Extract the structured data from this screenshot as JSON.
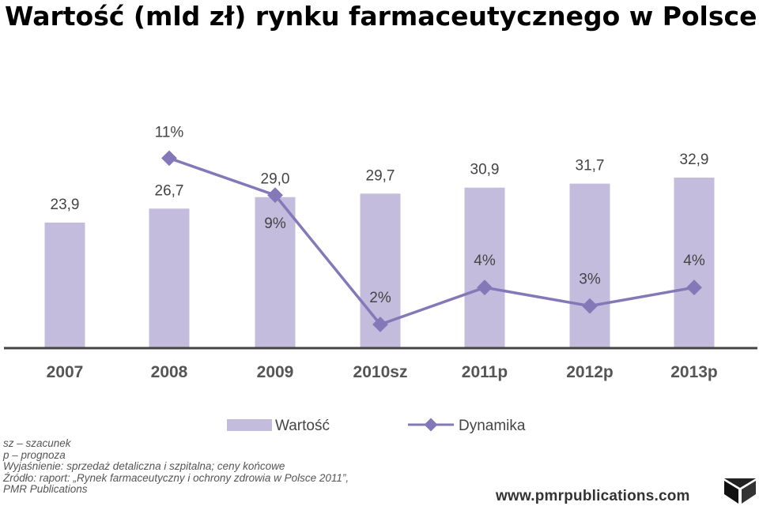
{
  "title": "Wartość (mld zł) rynku farmaceutycznego w Polsce",
  "chart_data": {
    "type": "bar",
    "categories": [
      "2007",
      "2008",
      "2009",
      "2010sz",
      "2011p",
      "2012p",
      "2013p"
    ],
    "series": [
      {
        "name": "Wartość",
        "type": "bar",
        "values": [
          23.9,
          26.7,
          29.0,
          29.7,
          30.9,
          31.7,
          32.9
        ],
        "labels": [
          "23,9",
          "26,7",
          "29,0",
          "29,7",
          "30,9",
          "31,7",
          "32,9"
        ]
      },
      {
        "name": "Dynamika",
        "type": "line",
        "values": [
          null,
          11,
          9,
          2,
          4,
          3,
          4
        ],
        "labels": [
          "",
          "11%",
          "9%",
          "2%",
          "4%",
          "3%",
          "4%"
        ]
      }
    ],
    "colors": {
      "bar": "#c3bcdc",
      "line": "#8478b8",
      "axis": "#444444"
    }
  },
  "notes": [
    "sz – szacunek",
    "p – prognoza",
    "Wyjaśnienie: sprzedaż detaliczna i szpitalna; ceny końcowe",
    "Źródło: raport: „Rynek farmaceutyczny i ochrony zdrowia w Polsce 2011”,",
    "PMR Publications"
  ],
  "url": "www.pmrpublications.com"
}
